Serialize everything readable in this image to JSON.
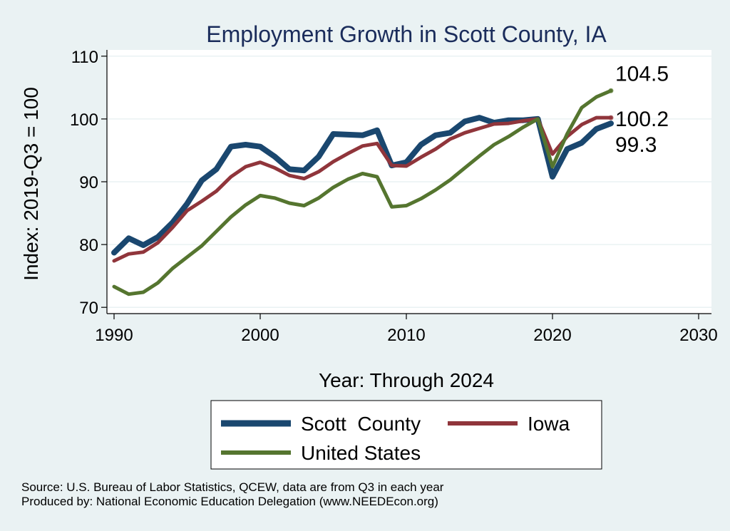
{
  "chart_data": {
    "type": "line",
    "title": "Employment Growth in Scott County, IA",
    "xlabel": "Year: Through 2024",
    "ylabel": "Index: 2019-Q3 = 100",
    "xlim": [
      1990,
      2030
    ],
    "ylim": [
      69,
      111
    ],
    "xticks": [
      1990,
      2000,
      2010,
      2020,
      2030
    ],
    "yticks": [
      70,
      80,
      90,
      100,
      110
    ],
    "x": [
      1990,
      1991,
      1992,
      1993,
      1994,
      1995,
      1996,
      1997,
      1998,
      1999,
      2000,
      2001,
      2002,
      2003,
      2004,
      2005,
      2006,
      2007,
      2008,
      2009,
      2010,
      2011,
      2012,
      2013,
      2014,
      2015,
      2016,
      2017,
      2018,
      2019,
      2020,
      2021,
      2022,
      2023,
      2024
    ],
    "series": [
      {
        "name": "Scott  County",
        "color": "#1a476f",
        "end_label": "99.3",
        "values": [
          78.7,
          81.0,
          79.9,
          81.2,
          83.5,
          86.5,
          90.2,
          92.0,
          95.6,
          95.9,
          95.6,
          94.0,
          92.0,
          91.8,
          94.0,
          97.6,
          97.5,
          97.4,
          98.2,
          92.6,
          93.1,
          95.9,
          97.4,
          97.8,
          99.6,
          100.2,
          99.4,
          99.8,
          99.8,
          100.0,
          90.8,
          95.2,
          96.2,
          98.4,
          99.3
        ]
      },
      {
        "name": "Iowa",
        "color": "#90353b",
        "end_label": "100.2",
        "values": [
          77.4,
          78.5,
          78.8,
          80.3,
          82.7,
          85.4,
          86.9,
          88.5,
          90.8,
          92.4,
          93.1,
          92.2,
          91.0,
          90.5,
          91.6,
          93.2,
          94.5,
          95.7,
          96.1,
          92.6,
          92.5,
          93.9,
          95.2,
          96.8,
          97.8,
          98.5,
          99.2,
          99.3,
          99.7,
          100.0,
          94.4,
          97.2,
          99.1,
          100.2,
          100.2
        ]
      },
      {
        "name": "United States",
        "color": "#55752f",
        "end_label": "104.5",
        "values": [
          73.3,
          72.1,
          72.4,
          73.9,
          76.2,
          78.0,
          79.8,
          82.1,
          84.4,
          86.3,
          87.8,
          87.4,
          86.6,
          86.2,
          87.4,
          89.1,
          90.4,
          91.3,
          90.8,
          86.0,
          86.2,
          87.3,
          88.7,
          90.3,
          92.2,
          94.1,
          95.9,
          97.2,
          98.7,
          100.0,
          92.4,
          97.6,
          101.8,
          103.5,
          104.5
        ]
      }
    ],
    "legend": {
      "placement": "bottom",
      "entries": [
        "Scott  County",
        "Iowa",
        "United States"
      ]
    },
    "source": [
      "Source: U.S. Bureau of Labor Statistics, QCEW, data are from Q3 in each year",
      "Produced by: National Economic Education Delegation (www.NEEDEcon.org)"
    ]
  }
}
